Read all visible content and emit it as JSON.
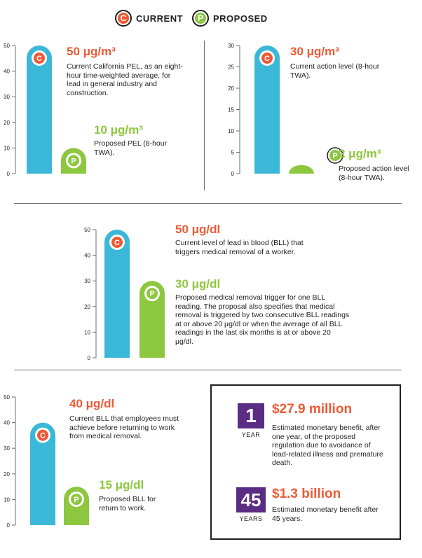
{
  "legend": {
    "current_letter": "C",
    "current_label": "CURRENT",
    "proposed_letter": "P",
    "proposed_label": "PROPOSED"
  },
  "colors": {
    "current_bar": "#3bb8d8",
    "proposed_bar": "#8dc63f",
    "current_badge": "#ee5a35",
    "proposed_badge": "#8dc63f",
    "benefit_badge": "#5b2c83"
  },
  "chart_data": [
    {
      "type": "bar",
      "id": "pel",
      "categories": [
        "Current",
        "Proposed"
      ],
      "values": [
        50,
        10
      ],
      "ylim": [
        0,
        50
      ],
      "yticks": [
        "0",
        "10",
        "20",
        "30",
        "40",
        "50"
      ],
      "labels": [
        {
          "value": "50 μg/m³",
          "desc": "Current California PEL, as an eight-hour time-weighted average, for lead in general industry and construction."
        },
        {
          "value": "10 μg/m³",
          "desc": "Proposed PEL (8-hour TWA)."
        }
      ]
    },
    {
      "type": "bar",
      "id": "action",
      "categories": [
        "Current",
        "Proposed"
      ],
      "values": [
        30,
        2
      ],
      "ylim": [
        0,
        30
      ],
      "yticks": [
        "0",
        "5",
        "10",
        "15",
        "20",
        "25",
        "30"
      ],
      "labels": [
        {
          "value": "30 μg/m³",
          "desc": "Current action level (8-hour TWA)."
        },
        {
          "value": "2 μg/m³",
          "desc": "Proposed action level (8-hour TWA)."
        }
      ]
    },
    {
      "type": "bar",
      "id": "removal",
      "categories": [
        "Current",
        "Proposed"
      ],
      "values": [
        50,
        30
      ],
      "ylim": [
        0,
        50
      ],
      "yticks": [
        "0",
        "10",
        "20",
        "30",
        "40",
        "50"
      ],
      "labels": [
        {
          "value": "50 μg/dl",
          "desc": "Current level of lead in blood (BLL) that triggers medical removal of a worker."
        },
        {
          "value": "30 μg/dl",
          "desc": "Proposed medical removal trigger for one BLL reading. The proposal also specifies that medical removal is triggered by two consecutive BLL readings at or above 20 μg/dl or when the average of all BLL readings in the last six months is at or above 20 μg/dl."
        }
      ]
    },
    {
      "type": "bar",
      "id": "return",
      "categories": [
        "Current",
        "Proposed"
      ],
      "values": [
        40,
        15
      ],
      "ylim": [
        0,
        50
      ],
      "yticks": [
        "0",
        "10",
        "20",
        "30",
        "40",
        "50"
      ],
      "labels": [
        {
          "value": "40 μg/dl",
          "desc": "Current BLL that employees must achieve before returning to work from medical removal."
        },
        {
          "value": "15 μg/dl",
          "desc": "Proposed BLL for return to work."
        }
      ]
    }
  ],
  "benefits": [
    {
      "number": "1",
      "unit": "YEAR",
      "amount": "$27.9 million",
      "desc": "Estimated monetary benefit, after one year, of the proposed regulation due to avoidance of lead-related illness and premature death."
    },
    {
      "number": "45",
      "unit": "YEARS",
      "amount": "$1.3 billion",
      "desc": "Estimated monetary benefit after 45 years."
    }
  ]
}
